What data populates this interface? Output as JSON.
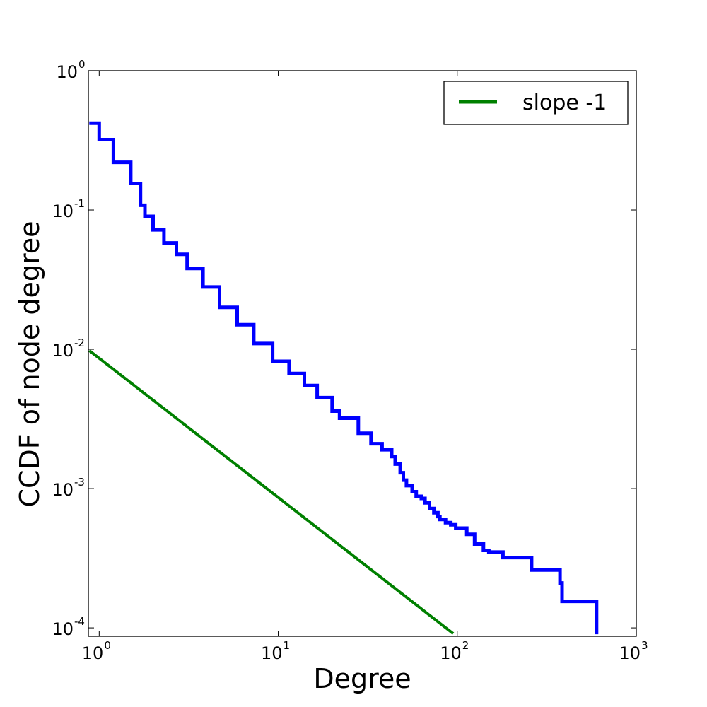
{
  "chart_data": {
    "type": "line",
    "xlabel": "Degree",
    "ylabel": "CCDF of node degree",
    "x_scale": "log",
    "y_scale": "log",
    "xlim": [
      0.87,
      1000
    ],
    "ylim": [
      8.7e-05,
      1
    ],
    "grid": false,
    "legend_position": "top-right",
    "x_ticks": [
      {
        "value": 1,
        "base": "10",
        "exp": "0"
      },
      {
        "value": 10,
        "base": "10",
        "exp": "1"
      },
      {
        "value": 100,
        "base": "10",
        "exp": "2"
      },
      {
        "value": 1000,
        "base": "10",
        "exp": "3"
      }
    ],
    "y_ticks": [
      {
        "value": 1,
        "base": "10",
        "exp": "0"
      },
      {
        "value": 0.1,
        "base": "10",
        "exp": "-1"
      },
      {
        "value": 0.01,
        "base": "10",
        "exp": "-2"
      },
      {
        "value": 0.001,
        "base": "10",
        "exp": "-3"
      },
      {
        "value": 0.0001,
        "base": "10",
        "exp": "-4"
      }
    ],
    "series": [
      {
        "color": "#0000ff",
        "step": true,
        "x": [
          0.88,
          1.0,
          1.2,
          1.5,
          1.7,
          1.8,
          2.0,
          2.3,
          2.7,
          3.1,
          3.8,
          4.7,
          5.9,
          7.3,
          9.3,
          11.5,
          14.0,
          16.5,
          20.0,
          22.0,
          28.0,
          33.0,
          38.0,
          43.0,
          45.0,
          48.0,
          50.0,
          52.0,
          56.0,
          59.0,
          63.0,
          66.0,
          70.0,
          74.0,
          78.0,
          80.0,
          86.0,
          92.0,
          98.0,
          113.0,
          125.0,
          140.0,
          150.0,
          180.0,
          260.0,
          375.0,
          385.0,
          600.0
        ],
        "y": [
          0.42,
          0.32,
          0.22,
          0.155,
          0.108,
          0.09,
          0.072,
          0.058,
          0.048,
          0.038,
          0.028,
          0.02,
          0.015,
          0.011,
          0.0082,
          0.0067,
          0.0055,
          0.0045,
          0.0036,
          0.0032,
          0.0025,
          0.0021,
          0.0019,
          0.0017,
          0.0015,
          0.0013,
          0.00115,
          0.00105,
          0.00095,
          0.00088,
          0.00085,
          0.00079,
          0.00072,
          0.00067,
          0.00063,
          0.0006,
          0.00057,
          0.00055,
          0.00052,
          0.00047,
          0.0004,
          0.00036,
          0.00035,
          0.00032,
          0.00026,
          0.00021,
          0.000155,
          9e-05
        ]
      },
      {
        "name": "slope -1",
        "color": "#008000",
        "step": false,
        "x": [
          0.88,
          95
        ],
        "y": [
          0.0098,
          9.1e-05
        ]
      }
    ]
  }
}
